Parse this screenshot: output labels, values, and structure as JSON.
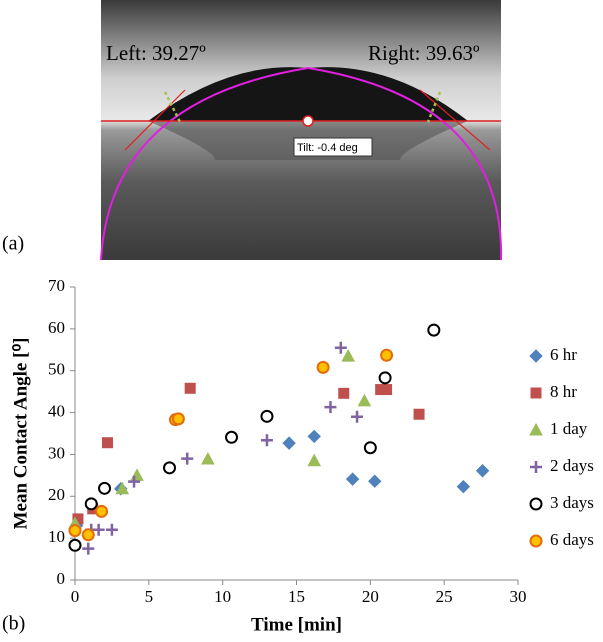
{
  "figure": {
    "label_a": "(a)",
    "label_b": "(b)",
    "image": {
      "left": "Left: 39.27º",
      "right": "Right: 39.63º",
      "tilt": "Tilt: -0.4 deg"
    }
  },
  "chart_data": {
    "type": "scatter",
    "x_label": "Time [min]",
    "y_label": "Mean Contact Angle [⁰]",
    "xlim": [
      0,
      30
    ],
    "xticks": [
      0,
      5,
      10,
      15,
      20,
      25,
      30
    ],
    "ylim": [
      0,
      70
    ],
    "yticks": [
      0,
      10,
      20,
      30,
      40,
      50,
      60,
      70
    ],
    "grid": false,
    "legend": "right",
    "series": [
      {
        "name": "6 hr",
        "color": "#4f81bd",
        "fill": "#4f81bd",
        "marker": "diamond",
        "x": [
          0.1,
          3.1,
          14.5,
          16.2,
          18.8,
          20.3,
          26.3,
          27.6
        ],
        "values": [
          13,
          21.8,
          32.7,
          34.3,
          24.1,
          23.6,
          22.3,
          26.1
        ]
      },
      {
        "name": "8 hr",
        "color": "#c0504d",
        "fill": "#c0504d",
        "marker": "square",
        "x": [
          0.2,
          1.2,
          2.2,
          7.8,
          18.2,
          20.7,
          21.1,
          23.3
        ],
        "values": [
          14.6,
          17,
          32.8,
          45.8,
          44.6,
          45.5,
          45.5,
          39.6
        ]
      },
      {
        "name": "1 day",
        "color": "#9bbb59",
        "fill": "#9bbb59",
        "marker": "triangle",
        "x": [
          0,
          3.2,
          4.2,
          9,
          16.2,
          18.5,
          19.6
        ],
        "values": [
          13.5,
          21.8,
          25,
          28.9,
          28.5,
          53.5,
          42.8
        ]
      },
      {
        "name": "2 days",
        "color": "#8064a2",
        "fill": "#8064a2",
        "marker": "plus",
        "x": [
          0.9,
          1.1,
          1.6,
          2.5,
          4,
          7.6,
          13,
          17.3,
          18,
          19.1
        ],
        "values": [
          7.5,
          12,
          12,
          12,
          23.5,
          29,
          33.4,
          41.3,
          55.5,
          39
        ]
      },
      {
        "name": "3 days",
        "color": "#000000",
        "fill": "#ffffff",
        "marker": "circle",
        "x": [
          0,
          1.1,
          2,
          6.4,
          10.6,
          13,
          20,
          21,
          24.3
        ],
        "values": [
          8.3,
          18.2,
          21.9,
          26.8,
          34.1,
          39.1,
          31.6,
          48.3,
          59.7
        ]
      },
      {
        "name": "6 days",
        "color": "#e46c0a",
        "fill": "#ffc000",
        "marker": "circle",
        "x": [
          0,
          0.9,
          1.8,
          6.8,
          7,
          16.8,
          21.1
        ],
        "values": [
          11.8,
          10.8,
          16.4,
          38.3,
          38.5,
          50.8,
          53.7
        ]
      }
    ]
  }
}
